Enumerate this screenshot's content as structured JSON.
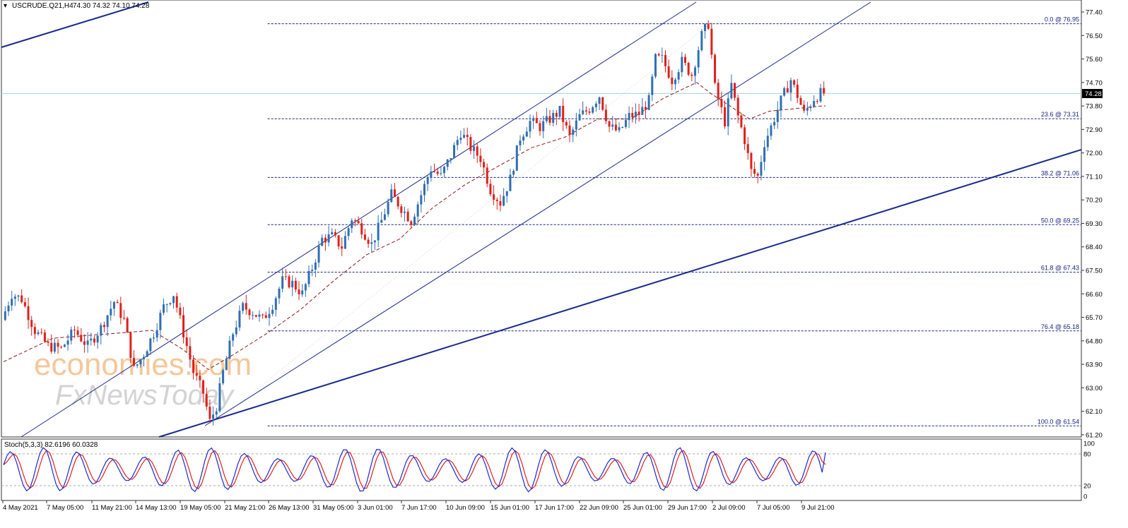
{
  "header": {
    "symbol": "USCRUDE.Q21,H4",
    "ohlc": "74.30 74.32 74.10 74.28"
  },
  "stoch_header": "Stoch(5,3,3) 82.6196 60.0328",
  "watermark": {
    "line1": "economies.com",
    "line2": "FxNewsToday"
  },
  "colors": {
    "bull": "#2f6fb3",
    "bear": "#e0201a",
    "ma": "#8b1a1a",
    "channel": "#1b2a8f",
    "fib": "#1a237e",
    "price_line": "#9fd6dd",
    "stoch_main": "#1f2bd1",
    "stoch_signal": "#e02020",
    "watermark1": "#f5c79a",
    "watermark2": "#d0d0d0"
  },
  "chart_data": {
    "type": "candlestick",
    "instrument": "USCRUDE.Q21",
    "timeframe": "H4",
    "last_price": "74.28",
    "y_axis_ticks": [
      "77.40",
      "76.50",
      "75.60",
      "74.70",
      "73.80",
      "72.90",
      "72.00",
      "71.10",
      "70.20",
      "69.30",
      "68.40",
      "67.50",
      "66.60",
      "65.70",
      "64.80",
      "63.90",
      "63.00",
      "62.10",
      "61.20"
    ],
    "x_axis_ticks": [
      "4 May 2021",
      "7 May 05:00",
      "11 May 21:00",
      "14 May 13:00",
      "19 May 05:00",
      "21 May 21:00",
      "26 May 13:00",
      "31 May 05:00",
      "3 Jun 01:00",
      "7 Jun 17:00",
      "10 Jun 09:00",
      "15 Jun 01:00",
      "17 Jun 17:00",
      "22 Jun 09:00",
      "25 Jun 01:00",
      "29 Jun 17:00",
      "2 Jul 09:00",
      "7 Jul 05:00",
      "9 Jul 21:00"
    ],
    "fibonacci_levels": [
      {
        "ratio": 0.0,
        "price": 76.95,
        "label": "0.0 @ 76.95"
      },
      {
        "ratio": 23.6,
        "price": 73.31,
        "label": "23.6 @ 73.31"
      },
      {
        "ratio": 38.2,
        "price": 71.06,
        "label": "38.2 @ 71.06"
      },
      {
        "ratio": 50.0,
        "price": 69.25,
        "label": "50.0 @ 69.25"
      },
      {
        "ratio": 61.8,
        "price": 67.43,
        "label": "61.8 @ 67.43"
      },
      {
        "ratio": 76.4,
        "price": 65.18,
        "label": "76.4 @ 65.18"
      },
      {
        "ratio": 100.0,
        "price": 61.54,
        "label": "100.0 @ 61.54"
      }
    ],
    "price_path": [
      [
        0,
        65.6
      ],
      [
        3,
        66.6
      ],
      [
        6,
        66.4
      ],
      [
        10,
        65.2
      ],
      [
        14,
        64.6
      ],
      [
        18,
        64.5
      ],
      [
        22,
        65.2
      ],
      [
        26,
        64.6
      ],
      [
        30,
        65.3
      ],
      [
        34,
        66.3
      ],
      [
        37,
        65.6
      ],
      [
        40,
        63.7
      ],
      [
        43,
        64.3
      ],
      [
        46,
        65.1
      ],
      [
        49,
        66.1
      ],
      [
        52,
        66.6
      ],
      [
        55,
        65.1
      ],
      [
        58,
        63.6
      ],
      [
        61,
        62.8
      ],
      [
        63,
        61.7
      ],
      [
        65,
        62.3
      ],
      [
        67,
        63.6
      ],
      [
        70,
        65.1
      ],
      [
        73,
        66.1
      ],
      [
        76,
        65.9
      ],
      [
        79,
        65.6
      ],
      [
        82,
        66.2
      ],
      [
        85,
        67.1
      ],
      [
        88,
        67.0
      ],
      [
        91,
        66.6
      ],
      [
        94,
        67.6
      ],
      [
        97,
        68.7
      ],
      [
        100,
        68.8
      ],
      [
        103,
        68.4
      ],
      [
        106,
        69.5
      ],
      [
        109,
        69.1
      ],
      [
        112,
        68.5
      ],
      [
        115,
        69.4
      ],
      [
        118,
        70.4
      ],
      [
        121,
        69.9
      ],
      [
        124,
        69.4
      ],
      [
        127,
        70.4
      ],
      [
        130,
        71.4
      ],
      [
        133,
        71.1
      ],
      [
        136,
        71.9
      ],
      [
        139,
        72.8
      ],
      [
        142,
        72.2
      ],
      [
        145,
        71.8
      ],
      [
        148,
        70.6
      ],
      [
        151,
        70.1
      ],
      [
        154,
        71.0
      ],
      [
        157,
        72.6
      ],
      [
        160,
        73.2
      ],
      [
        163,
        73.0
      ],
      [
        166,
        73.3
      ],
      [
        169,
        73.6
      ],
      [
        172,
        72.6
      ],
      [
        175,
        73.4
      ],
      [
        178,
        73.7
      ],
      [
        181,
        74.2
      ],
      [
        184,
        73.0
      ],
      [
        187,
        72.8
      ],
      [
        190,
        73.4
      ],
      [
        193,
        73.5
      ],
      [
        196,
        74.0
      ],
      [
        198,
        75.6
      ],
      [
        200,
        75.6
      ],
      [
        203,
        74.8
      ],
      [
        206,
        75.5
      ],
      [
        209,
        75.0
      ],
      [
        212,
        76.5
      ],
      [
        214,
        76.95
      ],
      [
        216,
        74.5
      ],
      [
        219,
        73.2
      ],
      [
        221,
        74.6
      ],
      [
        223,
        73.4
      ],
      [
        225,
        72.5
      ],
      [
        227,
        71.3
      ],
      [
        229,
        71.1
      ],
      [
        231,
        72.4
      ],
      [
        233,
        73.0
      ],
      [
        236,
        74.0
      ],
      [
        239,
        74.8
      ],
      [
        241,
        74.2
      ],
      [
        243,
        73.5
      ],
      [
        246,
        74.1
      ],
      [
        248,
        74.28
      ]
    ],
    "ma_path": [
      [
        0,
        64.0
      ],
      [
        15,
        64.9
      ],
      [
        35,
        65.1
      ],
      [
        45,
        65.2
      ],
      [
        54,
        64.5
      ],
      [
        62,
        63.7
      ],
      [
        70,
        64.3
      ],
      [
        80,
        65.1
      ],
      [
        90,
        66.0
      ],
      [
        100,
        67.1
      ],
      [
        110,
        68.1
      ],
      [
        120,
        68.7
      ],
      [
        130,
        69.9
      ],
      [
        140,
        70.8
      ],
      [
        150,
        71.5
      ],
      [
        160,
        72.2
      ],
      [
        170,
        72.6
      ],
      [
        180,
        73.3
      ],
      [
        190,
        73.3
      ],
      [
        200,
        74.1
      ],
      [
        210,
        74.7
      ],
      [
        214,
        74.3
      ],
      [
        220,
        73.8
      ],
      [
        226,
        73.3
      ],
      [
        232,
        73.6
      ],
      [
        240,
        73.7
      ],
      [
        248,
        73.8
      ]
    ],
    "stochastic": {
      "params": "5,3,3",
      "main": 82.6196,
      "signal": 60.0328,
      "levels": [
        80,
        20
      ],
      "axis_ticks": [
        "100",
        "80",
        "20",
        "0"
      ]
    },
    "x_range": [
      0,
      249
    ],
    "y_range": [
      61.2,
      77.4
    ]
  }
}
